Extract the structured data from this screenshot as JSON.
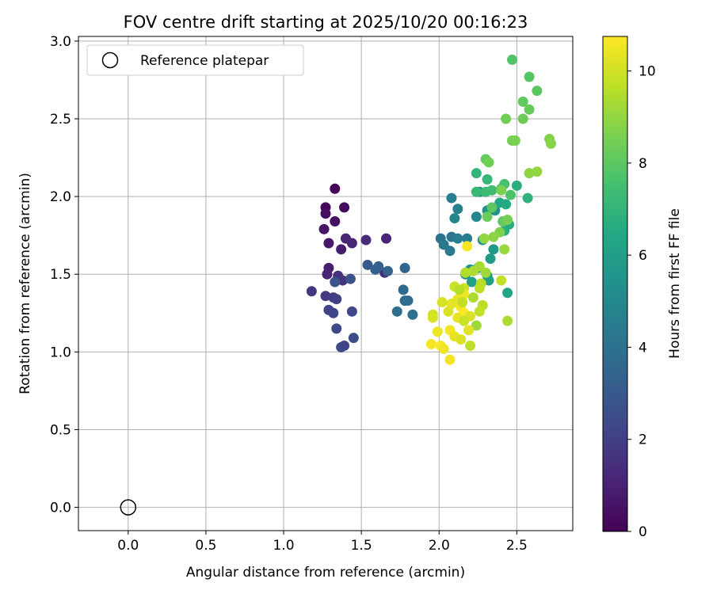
{
  "chart_data": {
    "type": "scatter",
    "title": "FOV centre drift starting at 2025/10/20 00:16:23",
    "xlabel": "Angular distance from reference (arcmin)",
    "ylabel": "Rotation from reference (arcmin)",
    "xlim": [
      -0.32,
      2.86
    ],
    "ylim": [
      -0.15,
      3.03
    ],
    "xticks": [
      0.0,
      0.5,
      1.0,
      1.5,
      2.0,
      2.5
    ],
    "yticks": [
      0.0,
      0.5,
      1.0,
      1.5,
      2.0,
      2.5,
      3.0
    ],
    "xtick_labels": [
      "0.0",
      "0.5",
      "1.0",
      "1.5",
      "2.0",
      "2.5"
    ],
    "ytick_labels": [
      "0.0",
      "0.5",
      "1.0",
      "1.5",
      "2.0",
      "2.5",
      "3.0"
    ],
    "grid": true,
    "legend": {
      "position": "top-left",
      "entries": [
        "Reference platepar"
      ]
    },
    "reference_point": {
      "x": 0.0,
      "y": 0.0,
      "marker": "open-circle",
      "color": "#000000"
    },
    "colorbar": {
      "label": "Hours from first FF file",
      "colormap": "viridis",
      "range": [
        0,
        10.75
      ],
      "ticks": [
        0,
        2,
        4,
        6,
        8,
        10
      ],
      "tick_labels": [
        "0",
        "2",
        "4",
        "6",
        "8",
        "10"
      ]
    },
    "series": [
      {
        "colormap": "viridis",
        "points": [
          [
            1.33,
            2.05,
            0.1
          ],
          [
            1.27,
            1.93,
            0.2
          ],
          [
            1.39,
            1.93,
            0.3
          ],
          [
            1.27,
            1.89,
            0.4
          ],
          [
            1.33,
            1.84,
            0.5
          ],
          [
            1.26,
            1.79,
            0.6
          ],
          [
            1.29,
            1.7,
            0.7
          ],
          [
            1.37,
            1.66,
            0.8
          ],
          [
            1.29,
            1.54,
            0.9
          ],
          [
            1.28,
            1.5,
            1.0
          ],
          [
            1.4,
            1.73,
            1.1
          ],
          [
            1.44,
            1.7,
            1.2
          ],
          [
            1.53,
            1.72,
            1.3
          ],
          [
            1.66,
            1.73,
            1.1
          ],
          [
            1.65,
            1.51,
            1.4
          ],
          [
            1.35,
            1.49,
            1.5
          ],
          [
            1.38,
            1.46,
            1.6
          ],
          [
            1.18,
            1.39,
            1.7
          ],
          [
            1.27,
            1.36,
            1.8
          ],
          [
            1.32,
            1.35,
            1.9
          ],
          [
            1.34,
            1.34,
            2.0
          ],
          [
            1.29,
            1.27,
            2.1
          ],
          [
            1.32,
            1.25,
            2.2
          ],
          [
            1.44,
            1.26,
            2.3
          ],
          [
            1.34,
            1.15,
            2.4
          ],
          [
            1.45,
            1.09,
            2.5
          ],
          [
            1.37,
            1.03,
            2.6
          ],
          [
            1.39,
            1.04,
            2.2
          ],
          [
            1.33,
            1.45,
            2.7
          ],
          [
            1.43,
            1.47,
            2.8
          ],
          [
            1.54,
            1.56,
            3.0
          ],
          [
            1.61,
            1.55,
            3.2
          ],
          [
            1.59,
            1.53,
            3.3
          ],
          [
            1.67,
            1.52,
            3.4
          ],
          [
            1.78,
            1.54,
            3.5
          ],
          [
            1.77,
            1.4,
            3.6
          ],
          [
            1.78,
            1.33,
            3.7
          ],
          [
            1.8,
            1.33,
            3.8
          ],
          [
            1.73,
            1.26,
            3.9
          ],
          [
            1.83,
            1.24,
            4.0
          ],
          [
            2.01,
            1.73,
            4.1
          ],
          [
            2.08,
            1.74,
            4.2
          ],
          [
            2.03,
            1.69,
            4.3
          ],
          [
            2.07,
            1.65,
            4.4
          ],
          [
            2.12,
            1.73,
            4.5
          ],
          [
            2.08,
            1.99,
            4.6
          ],
          [
            2.12,
            1.92,
            4.7
          ],
          [
            2.1,
            1.86,
            4.8
          ],
          [
            2.18,
            1.73,
            4.6
          ],
          [
            2.24,
            1.87,
            5.0
          ],
          [
            2.26,
            2.03,
            5.2
          ],
          [
            2.31,
            1.91,
            5.4
          ],
          [
            2.36,
            1.91,
            5.5
          ],
          [
            2.28,
            1.72,
            5.6
          ],
          [
            2.35,
            1.66,
            5.7
          ],
          [
            2.33,
            1.6,
            5.8
          ],
          [
            2.31,
            1.49,
            5.9
          ],
          [
            2.32,
            1.46,
            6.0
          ],
          [
            2.17,
            1.5,
            5.1
          ],
          [
            2.2,
            1.53,
            5.3
          ],
          [
            2.21,
            1.45,
            6.1
          ],
          [
            2.25,
            1.54,
            6.2
          ],
          [
            2.44,
            1.38,
            6.3
          ],
          [
            2.39,
            1.96,
            6.4
          ],
          [
            2.43,
            1.95,
            6.5
          ],
          [
            2.45,
            1.82,
            6.6
          ],
          [
            2.42,
            1.78,
            6.7
          ],
          [
            2.5,
            2.07,
            6.8
          ],
          [
            2.57,
            1.99,
            6.9
          ],
          [
            2.24,
            2.15,
            7.0
          ],
          [
            2.31,
            2.11,
            7.1
          ],
          [
            2.24,
            2.03,
            7.2
          ],
          [
            2.3,
            2.03,
            7.3
          ],
          [
            2.34,
            2.04,
            7.4
          ],
          [
            2.4,
            2.05,
            7.5
          ],
          [
            2.42,
            2.08,
            7.6
          ],
          [
            2.46,
            2.01,
            7.7
          ],
          [
            2.47,
            2.88,
            7.8
          ],
          [
            2.58,
            2.77,
            7.9
          ],
          [
            2.63,
            2.68,
            8.0
          ],
          [
            2.54,
            2.61,
            8.1
          ],
          [
            2.58,
            2.56,
            8.2
          ],
          [
            2.54,
            2.5,
            8.3
          ],
          [
            2.43,
            2.5,
            8.4
          ],
          [
            2.47,
            2.36,
            8.5
          ],
          [
            2.49,
            2.36,
            8.6
          ],
          [
            2.71,
            2.37,
            8.7
          ],
          [
            2.72,
            2.34,
            8.8
          ],
          [
            2.58,
            2.15,
            8.9
          ],
          [
            2.63,
            2.16,
            9.0
          ],
          [
            2.3,
            2.24,
            8.2
          ],
          [
            2.32,
            2.22,
            8.4
          ],
          [
            2.4,
            2.04,
            8.6
          ],
          [
            2.34,
            1.93,
            8.0
          ],
          [
            2.31,
            1.87,
            8.3
          ],
          [
            2.41,
            1.84,
            8.1
          ],
          [
            2.44,
            1.85,
            8.5
          ],
          [
            2.39,
            1.77,
            8.7
          ],
          [
            2.35,
            1.74,
            8.9
          ],
          [
            2.29,
            1.73,
            9.0
          ],
          [
            2.42,
            1.66,
            9.1
          ],
          [
            2.3,
            1.51,
            9.2
          ],
          [
            2.26,
            1.55,
            9.3
          ],
          [
            2.22,
            1.52,
            9.4
          ],
          [
            2.17,
            1.51,
            9.5
          ],
          [
            2.27,
            1.44,
            9.6
          ],
          [
            2.26,
            1.41,
            9.7
          ],
          [
            2.4,
            1.46,
            9.8
          ],
          [
            2.1,
            1.42,
            9.9
          ],
          [
            2.16,
            1.41,
            10.0
          ],
          [
            2.28,
            1.3,
            9.6
          ],
          [
            2.26,
            1.26,
            9.8
          ],
          [
            2.24,
            1.17,
            9.2
          ],
          [
            2.44,
            1.2,
            9.4
          ],
          [
            2.2,
            1.04,
            9.7
          ],
          [
            2.18,
            1.68,
            10.6
          ],
          [
            2.02,
            1.32,
            10.1
          ],
          [
            2.08,
            1.31,
            10.3
          ],
          [
            2.12,
            1.34,
            10.4
          ],
          [
            2.16,
            1.37,
            10.5
          ],
          [
            2.14,
            1.29,
            10.6
          ],
          [
            2.16,
            1.25,
            10.7
          ],
          [
            2.2,
            1.23,
            10.2
          ],
          [
            1.96,
            1.24,
            10.0
          ],
          [
            1.96,
            1.22,
            10.1
          ],
          [
            2.06,
            1.26,
            10.2
          ],
          [
            2.12,
            1.22,
            10.4
          ],
          [
            2.16,
            1.2,
            9.9
          ],
          [
            2.19,
            1.14,
            10.3
          ],
          [
            1.99,
            1.13,
            10.5
          ],
          [
            2.07,
            1.14,
            10.6
          ],
          [
            2.1,
            1.1,
            10.4
          ],
          [
            2.14,
            1.08,
            10.2
          ],
          [
            1.95,
            1.05,
            10.6
          ],
          [
            2.01,
            1.04,
            10.7
          ],
          [
            2.03,
            1.02,
            10.5
          ],
          [
            2.07,
            0.95,
            10.6
          ],
          [
            2.15,
            1.32,
            9.8
          ],
          [
            2.22,
            1.35,
            9.4
          ],
          [
            2.13,
            1.4,
            9.6
          ]
        ]
      }
    ]
  }
}
